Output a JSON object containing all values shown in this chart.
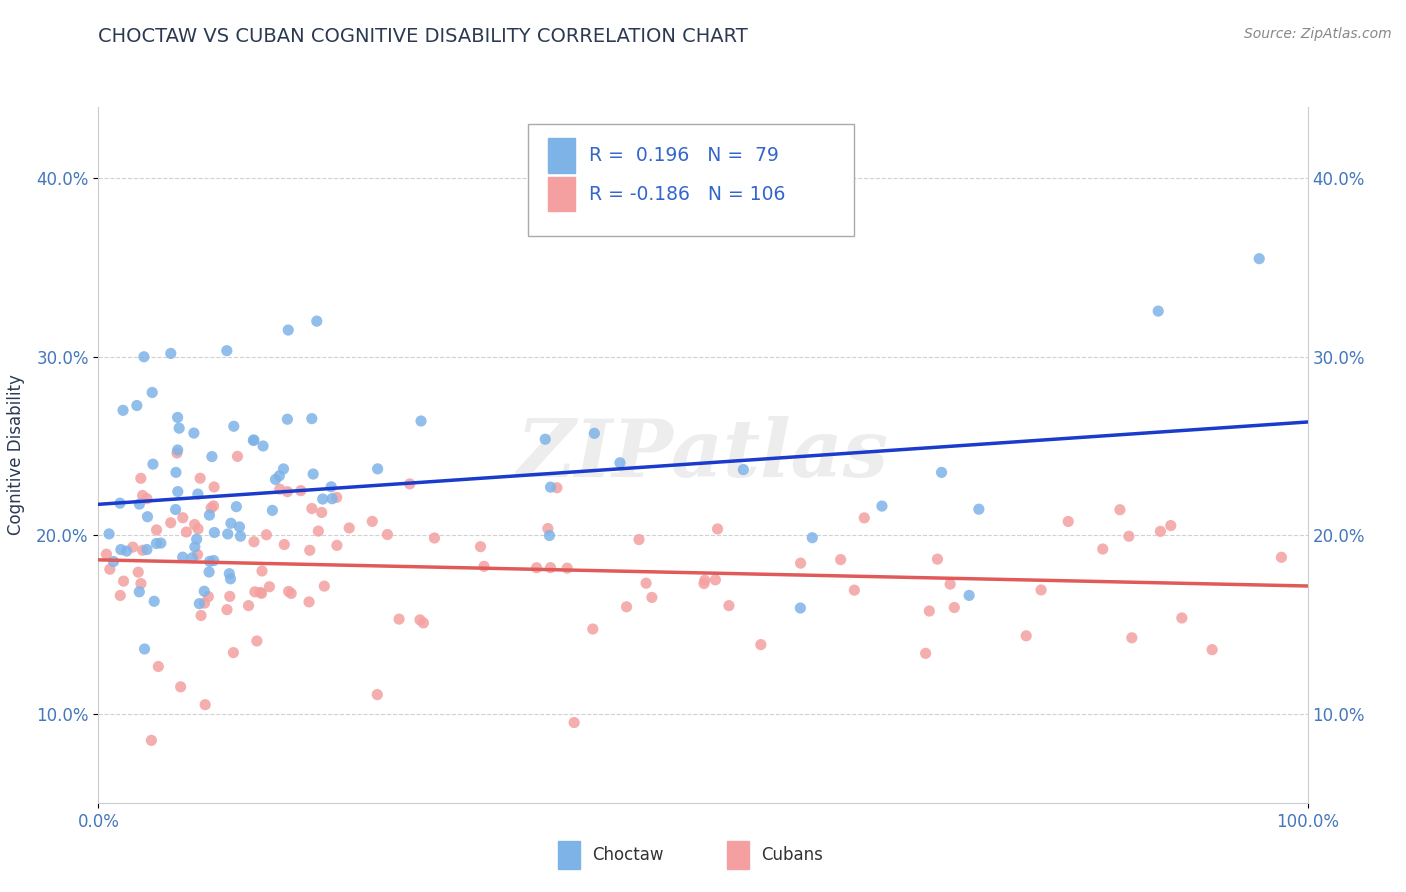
{
  "title": "CHOCTAW VS CUBAN COGNITIVE DISABILITY CORRELATION CHART",
  "source": "Source: ZipAtlas.com",
  "ylabel": "Cognitive Disability",
  "watermark": "ZIPatlas",
  "choctaw_R": 0.196,
  "choctaw_N": 79,
  "cuban_R": -0.186,
  "cuban_N": 106,
  "xlim": [
    0.0,
    1.0
  ],
  "ylim": [
    0.05,
    0.44
  ],
  "yticks": [
    0.1,
    0.2,
    0.3,
    0.4
  ],
  "ytick_labels": [
    "10.0%",
    "20.0%",
    "30.0%",
    "40.0%"
  ],
  "choctaw_color": "#7EB3E8",
  "cuban_color": "#F4A0A0",
  "choctaw_line_color": "#1A3BCC",
  "cuban_line_color": "#E05A5A",
  "background_color": "#FFFFFF",
  "title_color": "#2B3A52",
  "title_fontsize": 14,
  "legend_text_color": "#3366CC",
  "axis_tick_color": "#4477BB",
  "source_color": "#888888",
  "watermark_color": "#CCCCCC",
  "grid_color": "#CCCCCC"
}
